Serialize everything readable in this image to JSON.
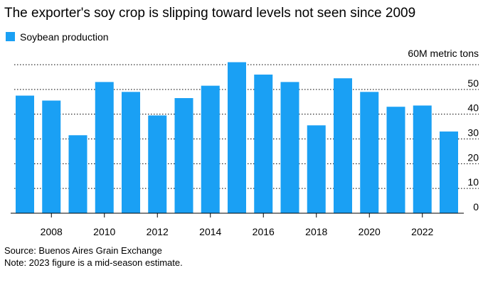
{
  "chart_data": {
    "type": "bar",
    "title": "The exporter's soy crop is slipping toward levels not seen since 2009",
    "legend": [
      {
        "name": "Soybean production",
        "color": "#1aa0f4"
      }
    ],
    "ylabel": "60M metric tons",
    "y_unit_label": "60M metric tons",
    "ylim": [
      0,
      60
    ],
    "yticks": [
      0,
      10,
      20,
      30,
      40,
      50
    ],
    "grid": true,
    "x": [
      2007,
      2008,
      2009,
      2010,
      2011,
      2012,
      2013,
      2014,
      2015,
      2016,
      2017,
      2018,
      2019,
      2020,
      2021,
      2022,
      2023
    ],
    "xtick_labels": [
      "2008",
      "2010",
      "2012",
      "2014",
      "2016",
      "2018",
      "2020",
      "2022"
    ],
    "xtick_values": [
      2008,
      2010,
      2012,
      2014,
      2016,
      2018,
      2020,
      2022
    ],
    "series": [
      {
        "name": "Soybean production",
        "color": "#1aa0f4",
        "values": [
          47.5,
          45.5,
          31.5,
          53,
          49,
          39.5,
          46.5,
          51.5,
          61,
          56,
          53,
          35.5,
          54.5,
          49,
          43,
          43.5,
          33
        ]
      }
    ]
  },
  "footer": {
    "source": "Source: Buenos Aires Grain Exchange",
    "note": "Note: 2023 figure is a mid-season estimate."
  }
}
